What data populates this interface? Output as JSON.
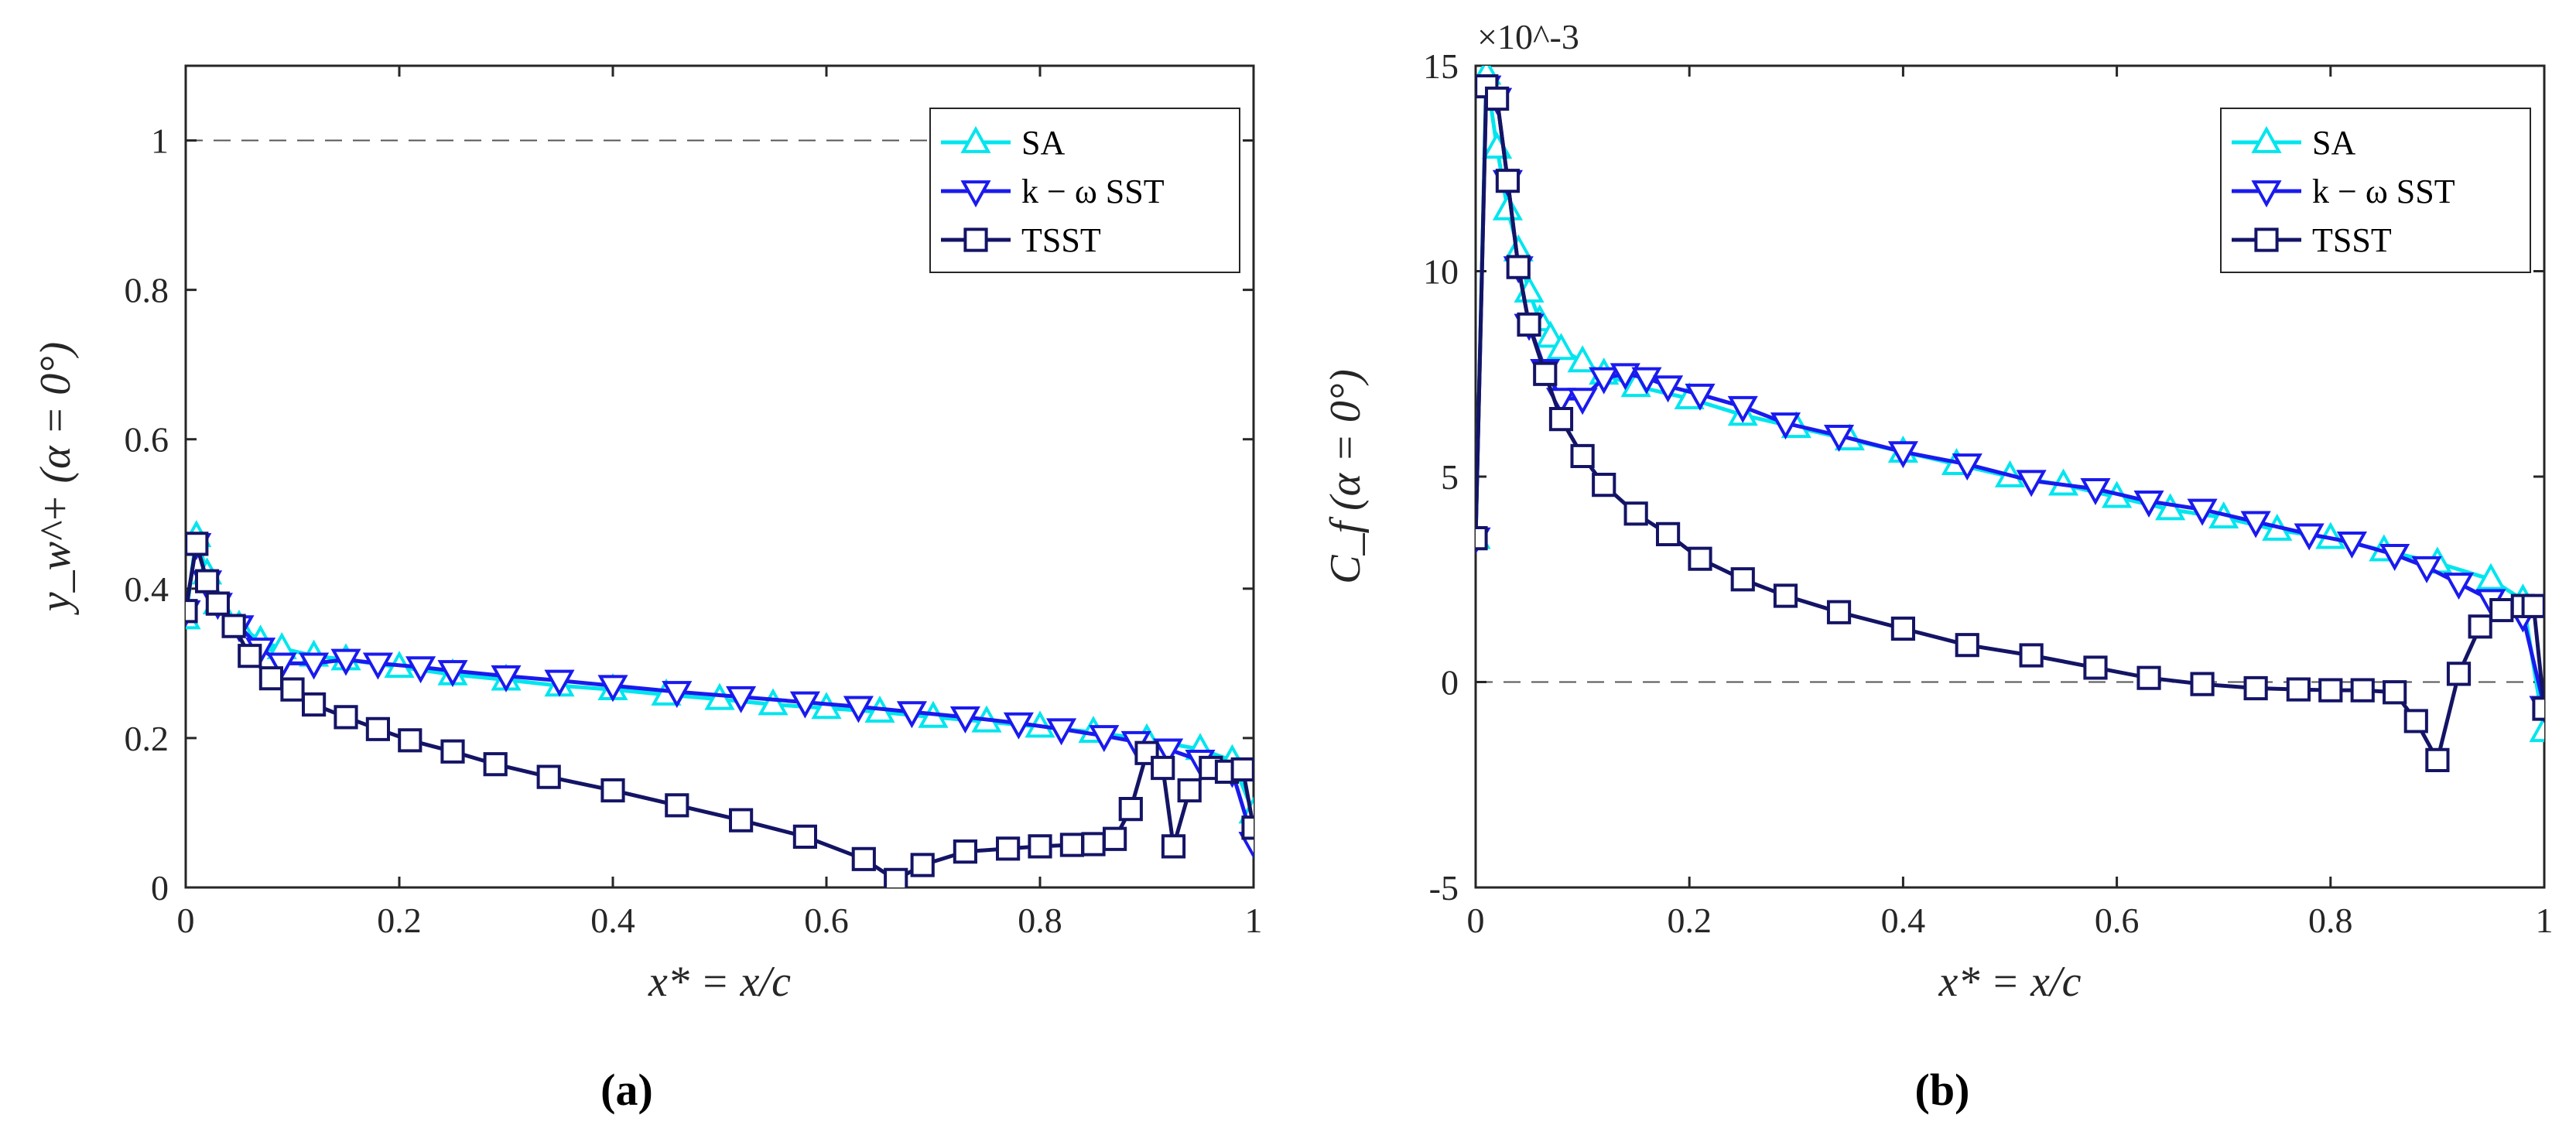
{
  "chart_data": [
    {
      "type": "line",
      "panel_label": "(a)",
      "ylabel": "y_w^+ (α = 0°)",
      "xlabel": "x* = x/c",
      "xlim": [
        0,
        1
      ],
      "ylim": [
        0,
        1.1
      ],
      "xticks": [
        "0",
        "0.2",
        "0.4",
        "0.6",
        "0.8",
        "1"
      ],
      "yticks": [
        "0",
        "0.2",
        "0.4",
        "0.6",
        "0.8",
        "1"
      ],
      "reference_line": 1,
      "legend": [
        "SA",
        "k − ω SST",
        "TSST"
      ],
      "legend_position": "top-right",
      "series": [
        {
          "name": "SA",
          "color": "#00e5ee",
          "marker": "triangle-up",
          "x": [
            0,
            0.01,
            0.02,
            0.03,
            0.05,
            0.07,
            0.09,
            0.12,
            0.15,
            0.2,
            0.25,
            0.3,
            0.35,
            0.4,
            0.45,
            0.5,
            0.55,
            0.6,
            0.65,
            0.7,
            0.75,
            0.8,
            0.85,
            0.9,
            0.95,
            0.98,
            1.0
          ],
          "y": [
            0.36,
            0.47,
            0.42,
            0.38,
            0.35,
            0.33,
            0.32,
            0.31,
            0.305,
            0.295,
            0.285,
            0.278,
            0.27,
            0.265,
            0.258,
            0.252,
            0.245,
            0.24,
            0.235,
            0.228,
            0.222,
            0.215,
            0.208,
            0.198,
            0.185,
            0.17,
            0.1
          ]
        },
        {
          "name": "k − ω SST",
          "color": "#1a1aee",
          "marker": "triangle-down",
          "x": [
            0,
            0.01,
            0.02,
            0.03,
            0.05,
            0.07,
            0.09,
            0.12,
            0.15,
            0.18,
            0.22,
            0.25,
            0.3,
            0.35,
            0.4,
            0.46,
            0.52,
            0.58,
            0.63,
            0.68,
            0.73,
            0.78,
            0.82,
            0.86,
            0.89,
            0.92,
            0.95,
            0.98,
            1.0
          ],
          "y": [
            0.37,
            0.46,
            0.41,
            0.38,
            0.35,
            0.32,
            0.3,
            0.3,
            0.305,
            0.3,
            0.295,
            0.29,
            0.283,
            0.277,
            0.27,
            0.262,
            0.255,
            0.248,
            0.242,
            0.235,
            0.228,
            0.22,
            0.212,
            0.203,
            0.195,
            0.185,
            0.17,
            0.155,
            0.06
          ]
        },
        {
          "name": "TSST",
          "color": "#141466",
          "marker": "square",
          "x": [
            0,
            0.01,
            0.02,
            0.03,
            0.045,
            0.06,
            0.08,
            0.1,
            0.12,
            0.15,
            0.18,
            0.21,
            0.25,
            0.29,
            0.34,
            0.4,
            0.46,
            0.52,
            0.58,
            0.635,
            0.665,
            0.69,
            0.73,
            0.77,
            0.8,
            0.83,
            0.85,
            0.87,
            0.885,
            0.9,
            0.915,
            0.925,
            0.94,
            0.96,
            0.975,
            0.99,
            1.0
          ],
          "y": [
            0.37,
            0.46,
            0.41,
            0.38,
            0.35,
            0.31,
            0.28,
            0.265,
            0.245,
            0.228,
            0.212,
            0.197,
            0.182,
            0.165,
            0.148,
            0.13,
            0.11,
            0.09,
            0.068,
            0.038,
            0.01,
            0.03,
            0.048,
            0.052,
            0.055,
            0.057,
            0.058,
            0.065,
            0.105,
            0.18,
            0.16,
            0.055,
            0.13,
            0.16,
            0.155,
            0.158,
            0.08
          ]
        }
      ]
    },
    {
      "type": "line",
      "panel_label": "(b)",
      "ylabel": "C_f (α = 0°)",
      "xlabel": "x* = x/c",
      "xlim": [
        0,
        1
      ],
      "ylim": [
        -5,
        15
      ],
      "y_multiplier": "×10^-3",
      "xticks": [
        "0",
        "0.2",
        "0.4",
        "0.6",
        "0.8",
        "1"
      ],
      "yticks": [
        "-5",
        "0",
        "5",
        "10",
        "15"
      ],
      "reference_line": 0,
      "legend": [
        "SA",
        "k − ω SST",
        "TSST"
      ],
      "legend_position": "top-right",
      "series": [
        {
          "name": "SA",
          "color": "#00e5ee",
          "marker": "triangle-up",
          "x": [
            0,
            0.01,
            0.02,
            0.03,
            0.04,
            0.05,
            0.06,
            0.07,
            0.08,
            0.1,
            0.12,
            0.15,
            0.2,
            0.25,
            0.3,
            0.35,
            0.4,
            0.45,
            0.5,
            0.55,
            0.6,
            0.65,
            0.7,
            0.75,
            0.8,
            0.85,
            0.9,
            0.95,
            0.98,
            1.0
          ],
          "y": [
            3.5,
            14.8,
            13.0,
            11.5,
            10.5,
            9.5,
            8.8,
            8.4,
            8.1,
            7.8,
            7.5,
            7.2,
            6.9,
            6.5,
            6.2,
            5.9,
            5.6,
            5.3,
            5.0,
            4.8,
            4.5,
            4.2,
            4.0,
            3.7,
            3.5,
            3.2,
            2.9,
            2.5,
            2.0,
            -1.2
          ]
        },
        {
          "name": "k − ω SST",
          "color": "#1a1aee",
          "marker": "triangle-down",
          "x": [
            0,
            0.01,
            0.02,
            0.03,
            0.04,
            0.05,
            0.065,
            0.08,
            0.1,
            0.12,
            0.14,
            0.16,
            0.18,
            0.21,
            0.25,
            0.29,
            0.34,
            0.4,
            0.46,
            0.52,
            0.58,
            0.63,
            0.68,
            0.73,
            0.78,
            0.82,
            0.86,
            0.89,
            0.92,
            0.95,
            0.98,
            1.0
          ],
          "y": [
            3.5,
            14.5,
            14.2,
            12.2,
            10.1,
            8.7,
            7.6,
            6.9,
            6.9,
            7.4,
            7.5,
            7.4,
            7.2,
            7.0,
            6.7,
            6.3,
            6.0,
            5.6,
            5.3,
            4.9,
            4.7,
            4.4,
            4.2,
            3.9,
            3.6,
            3.4,
            3.1,
            2.8,
            2.4,
            2.0,
            1.6,
            -0.6
          ]
        },
        {
          "name": "TSST",
          "color": "#141466",
          "marker": "square",
          "x": [
            0,
            0.01,
            0.02,
            0.03,
            0.04,
            0.05,
            0.065,
            0.08,
            0.1,
            0.12,
            0.15,
            0.18,
            0.21,
            0.25,
            0.29,
            0.34,
            0.4,
            0.46,
            0.52,
            0.58,
            0.63,
            0.68,
            0.73,
            0.77,
            0.8,
            0.83,
            0.86,
            0.88,
            0.9,
            0.92,
            0.94,
            0.96,
            0.98,
            0.99,
            1.0
          ],
          "y": [
            3.5,
            14.5,
            14.2,
            12.2,
            10.1,
            8.7,
            7.5,
            6.4,
            5.5,
            4.8,
            4.1,
            3.6,
            3.0,
            2.5,
            2.1,
            1.7,
            1.3,
            0.9,
            0.65,
            0.35,
            0.1,
            -0.05,
            -0.15,
            -0.18,
            -0.2,
            -0.2,
            -0.25,
            -0.95,
            -1.9,
            0.2,
            1.35,
            1.75,
            1.85,
            1.85,
            -0.65
          ]
        }
      ]
    }
  ]
}
